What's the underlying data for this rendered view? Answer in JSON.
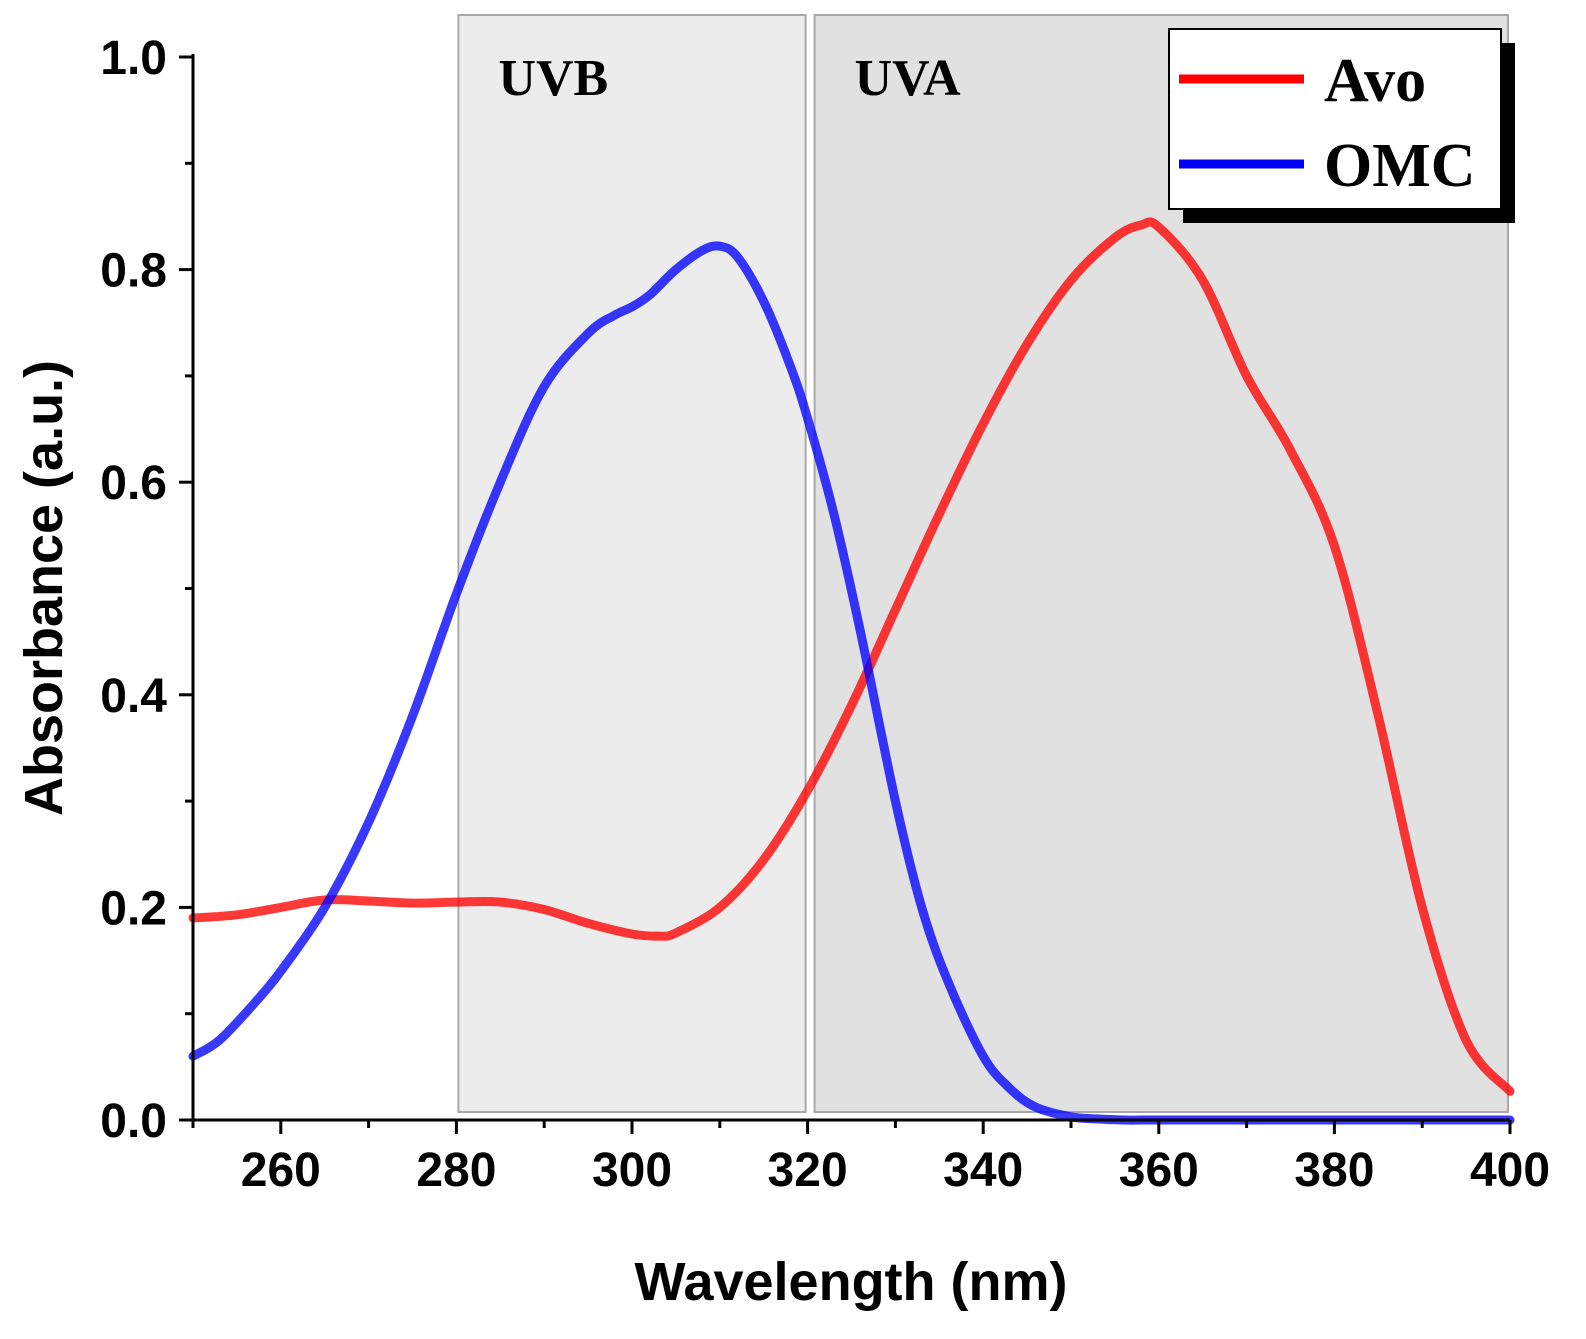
{
  "chart_data": {
    "type": "line",
    "title": "",
    "xlabel": "Wavelength (nm)",
    "ylabel": "Absorbance (a.u.)",
    "xlim": [
      250,
      400
    ],
    "ylim": [
      0.0,
      1.0
    ],
    "x_major_ticks": [
      260,
      280,
      300,
      320,
      340,
      360,
      380,
      400
    ],
    "x_tick_labels": [
      "260",
      "280",
      "300",
      "320",
      "340",
      "360",
      "380",
      "400"
    ],
    "y_major_ticks": [
      0.0,
      0.2,
      0.4,
      0.6,
      0.8,
      1.0
    ],
    "y_tick_labels": [
      "0.0",
      "0.2",
      "0.4",
      "0.6",
      "0.8",
      "1.0"
    ],
    "grid": false,
    "legend_position": "top-right",
    "regions": [
      {
        "label": "UVB",
        "x_start": 280,
        "x_end": 320,
        "color": "#ececec"
      },
      {
        "label": "UVA",
        "x_start": 320,
        "x_end": 400,
        "color": "#e1e1e1"
      }
    ],
    "series": [
      {
        "name": "Avo",
        "color": "#ff0000",
        "x": [
          250,
          255,
          260,
          265,
          270,
          275,
          280,
          285,
          290,
          295,
          300,
          303,
          305,
          310,
          315,
          320,
          325,
          330,
          335,
          340,
          345,
          350,
          355,
          358,
          360,
          365,
          370,
          375,
          380,
          385,
          390,
          395,
          400
        ],
        "y": [
          0.19,
          0.193,
          0.2,
          0.207,
          0.206,
          0.204,
          0.205,
          0.205,
          0.198,
          0.185,
          0.175,
          0.173,
          0.176,
          0.2,
          0.245,
          0.31,
          0.39,
          0.48,
          0.57,
          0.655,
          0.73,
          0.79,
          0.83,
          0.842,
          0.84,
          0.79,
          0.7,
          0.63,
          0.54,
          0.38,
          0.2,
          0.075,
          0.027
        ]
      },
      {
        "name": "OMC",
        "color": "#0000ff",
        "x": [
          250,
          253,
          257,
          260,
          265,
          270,
          275,
          280,
          285,
          290,
          295,
          298,
          300,
          302,
          305,
          308,
          310,
          312,
          315,
          318,
          320,
          323,
          326,
          330,
          333,
          336,
          340,
          343,
          346,
          350,
          353,
          356,
          360,
          370,
          380,
          390,
          400
        ],
        "y": [
          0.06,
          0.075,
          0.11,
          0.14,
          0.2,
          0.28,
          0.38,
          0.495,
          0.6,
          0.69,
          0.74,
          0.757,
          0.765,
          0.776,
          0.8,
          0.818,
          0.822,
          0.812,
          0.77,
          0.71,
          0.66,
          0.57,
          0.46,
          0.3,
          0.2,
          0.13,
          0.06,
          0.03,
          0.012,
          0.003,
          0.001,
          0.0,
          0.0,
          0.0,
          0.0,
          0.0,
          0.0
        ]
      }
    ]
  }
}
